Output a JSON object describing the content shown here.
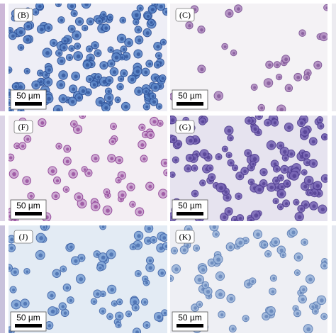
{
  "panels": [
    {
      "label": "(B)",
      "scale": "50 µm"
    },
    {
      "label": "(C)",
      "scale": "50 µm"
    },
    {
      "label": "(F)",
      "scale": "50 µm"
    },
    {
      "label": "(G)",
      "scale": "50 µm"
    },
    {
      "label": "(J)",
      "scale": "50 µm"
    },
    {
      "label": "(K)",
      "scale": "50 µm"
    }
  ]
}
